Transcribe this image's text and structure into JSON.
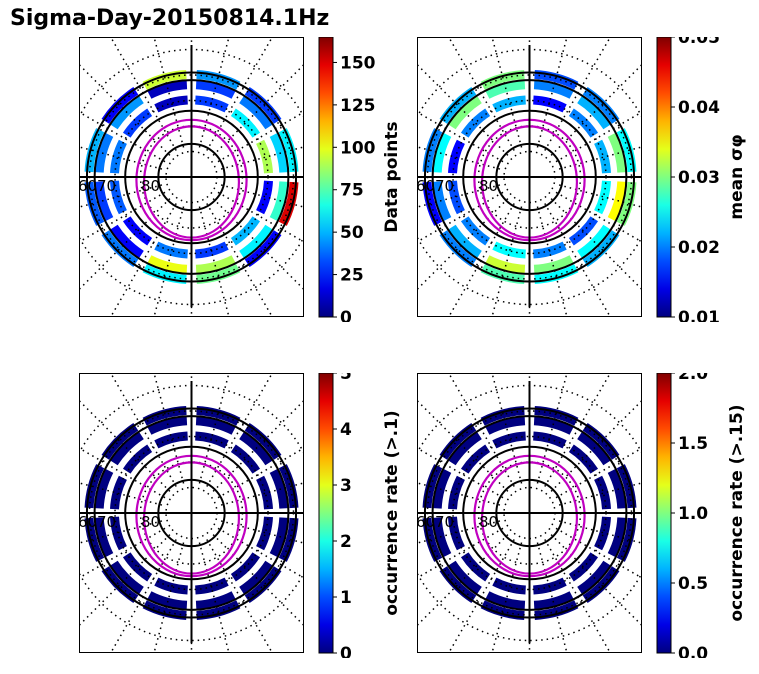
{
  "figure": {
    "title": "Sigma-Day-20150814.1Hz"
  },
  "colormap": "jet",
  "colors": {
    "background": "#ffffff",
    "axes": "#000000",
    "boundary": "#c000c0"
  },
  "chart_data": [
    {
      "type": "heatmap",
      "projection": "polar",
      "title": "",
      "lat_labels": [
        "60",
        "70",
        "80"
      ],
      "colorbar": {
        "label": "Data points",
        "range": [
          0,
          165
        ],
        "ticks": [
          "0",
          "25",
          "50",
          "75",
          "100",
          "125",
          "150"
        ]
      },
      "grid": "dotted",
      "sample_rings": [
        {
          "radius_deg": 21,
          "values": [
            45,
            30,
            60,
            150,
            20,
            80,
            60,
            40,
            35,
            50,
            20,
            95
          ]
        },
        {
          "radius_deg": 19,
          "values": [
            30,
            40,
            55,
            70,
            60,
            90,
            100,
            20,
            30,
            40,
            45,
            10
          ]
        },
        {
          "radius_deg": 16,
          "values": [
            30,
            60,
            90,
            20,
            50,
            30,
            40,
            20,
            35,
            40,
            30,
            10
          ]
        }
      ]
    },
    {
      "type": "heatmap",
      "projection": "polar",
      "title": "",
      "lat_labels": [
        "60",
        "70",
        "80"
      ],
      "colorbar": {
        "label": "mean σφ",
        "range": [
          0.01,
          0.05
        ],
        "ticks": [
          "0.01",
          "0.02",
          "0.03",
          "0.04",
          "0.05"
        ]
      },
      "grid": "dotted",
      "sample_rings": [
        {
          "radius_deg": 21,
          "values": [
            0.018,
            0.02,
            0.025,
            0.03,
            0.022,
            0.025,
            0.028,
            0.02,
            0.015,
            0.02,
            0.022,
            0.03
          ]
        },
        {
          "radius_deg": 19,
          "values": [
            0.02,
            0.022,
            0.03,
            0.035,
            0.025,
            0.03,
            0.033,
            0.022,
            0.02,
            0.025,
            0.03,
            0.028
          ]
        },
        {
          "radius_deg": 16,
          "values": [
            0.015,
            0.02,
            0.022,
            0.025,
            0.018,
            0.02,
            0.025,
            0.02,
            0.018,
            0.015,
            0.02,
            0.022
          ]
        }
      ]
    },
    {
      "type": "heatmap",
      "projection": "polar",
      "title": "",
      "lat_labels": [
        "60",
        "70",
        "80"
      ],
      "colorbar": {
        "label": "occurrence rate (>.1)",
        "range": [
          0,
          5
        ],
        "ticks": [
          "0",
          "1",
          "2",
          "3",
          "4",
          "5"
        ]
      },
      "grid": "dotted",
      "sample_rings": [
        {
          "radius_deg": 21,
          "values": [
            0,
            0,
            0,
            0,
            0,
            0,
            0,
            0,
            0,
            0,
            0,
            0
          ]
        },
        {
          "radius_deg": 19,
          "values": [
            0,
            0,
            0,
            0,
            0,
            0,
            0,
            0,
            0,
            0,
            0,
            0
          ]
        },
        {
          "radius_deg": 16,
          "values": [
            0,
            0,
            0,
            0,
            0,
            0,
            0,
            0,
            0,
            0,
            0,
            0
          ]
        }
      ]
    },
    {
      "type": "heatmap",
      "projection": "polar",
      "title": "",
      "lat_labels": [
        "60",
        "70",
        "80"
      ],
      "colorbar": {
        "label": "occurrence rate (>.15)",
        "range": [
          0,
          2
        ],
        "ticks": [
          "0.0",
          "0.5",
          "1.0",
          "1.5",
          "2.0"
        ]
      },
      "grid": "dotted",
      "sample_rings": [
        {
          "radius_deg": 21,
          "values": [
            0,
            0,
            0,
            0,
            0,
            0,
            0,
            0,
            0,
            0,
            0,
            0
          ]
        },
        {
          "radius_deg": 19,
          "values": [
            0,
            0,
            0,
            0,
            0,
            0,
            0,
            0,
            0,
            0,
            0,
            0
          ]
        },
        {
          "radius_deg": 16,
          "values": [
            0,
            0,
            0,
            0,
            0,
            0,
            0,
            0,
            0,
            0,
            0,
            0
          ]
        }
      ]
    }
  ]
}
